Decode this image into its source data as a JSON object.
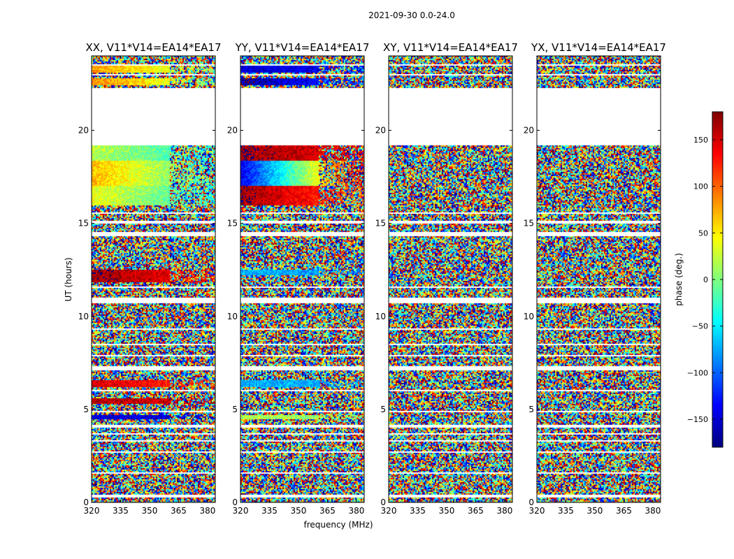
{
  "figure": {
    "suptitle": "2021-09-30 0.0-24.0",
    "xlabel": "frequency (MHz)",
    "ylabel": "UT (hours)"
  },
  "colorbar": {
    "label": "phase (deg.)",
    "range": [
      -180,
      180
    ],
    "ticks": [
      -150,
      -100,
      -50,
      0,
      50,
      100,
      150
    ],
    "tick_labels": [
      "−150",
      "−100",
      "−50",
      "0",
      "50",
      "100",
      "150"
    ],
    "colormap": "jet",
    "colormap_stops": [
      "#00007f",
      "#0000ff",
      "#007fff",
      "#00ffff",
      "#7fff7f",
      "#ffff00",
      "#ff7f00",
      "#ff0000",
      "#7f0000"
    ]
  },
  "chart_data": [
    {
      "type": "heatmap",
      "title": "XX, V11*V14=EA14*EA17",
      "x_ticks": [
        320,
        335,
        350,
        365,
        380
      ],
      "y_ticks": [
        0,
        5,
        10,
        15,
        20
      ],
      "xlim": [
        320,
        384
      ],
      "ylim": [
        0,
        24
      ],
      "coherent_bands": [
        {
          "t0": 4.5,
          "t1": 4.7,
          "phase_low": -150,
          "phase_high": -150
        },
        {
          "t0": 5.3,
          "t1": 5.6,
          "phase_low": 160,
          "phase_high": 150
        },
        {
          "t0": 6.2,
          "t1": 6.6,
          "phase_low": 150,
          "phase_high": 110
        },
        {
          "t0": 11.8,
          "t1": 12.5,
          "phase_low": 170,
          "phase_high": 130
        },
        {
          "t0": 16.0,
          "t1": 17.0,
          "phase_low": 40,
          "phase_high": -40
        },
        {
          "t0": 17.0,
          "t1": 18.4,
          "phase_low": 70,
          "phase_high": -30
        },
        {
          "t0": 18.4,
          "t1": 19.2,
          "phase_low": 20,
          "phase_high": -40
        },
        {
          "t0": 22.4,
          "t1": 22.8,
          "phase_low": 90,
          "phase_high": 0
        },
        {
          "t0": 23.1,
          "t1": 23.5,
          "phase_low": 80,
          "phase_high": 10
        }
      ]
    },
    {
      "type": "heatmap",
      "title": "YY, V11*V14=EA14*EA17",
      "x_ticks": [
        320,
        335,
        350,
        365,
        380
      ],
      "y_ticks": [
        0,
        5,
        10,
        15,
        20
      ],
      "xlim": [
        320,
        384
      ],
      "ylim": [
        0,
        24
      ],
      "coherent_bands": [
        {
          "t0": 4.5,
          "t1": 4.7,
          "phase_low": 20,
          "phase_high": 0
        },
        {
          "t0": 6.2,
          "t1": 6.6,
          "phase_low": -70,
          "phase_high": -80
        },
        {
          "t0": 12.2,
          "t1": 12.5,
          "phase_low": -70,
          "phase_high": -90
        },
        {
          "t0": 16.0,
          "t1": 17.0,
          "phase_low": 170,
          "phase_high": 100
        },
        {
          "t0": 17.0,
          "t1": 18.4,
          "phase_low": -140,
          "phase_high": 150
        },
        {
          "t0": 18.4,
          "t1": 19.2,
          "phase_low": 170,
          "phase_high": 140
        },
        {
          "t0": 22.4,
          "t1": 22.8,
          "phase_low": -170,
          "phase_high": -110
        },
        {
          "t0": 23.1,
          "t1": 23.5,
          "phase_low": -150,
          "phase_high": -140
        }
      ]
    },
    {
      "type": "heatmap",
      "title": "XY, V11*V14=EA14*EA17",
      "x_ticks": [
        320,
        335,
        350,
        365,
        380
      ],
      "y_ticks": [
        0,
        5,
        10,
        15,
        20
      ],
      "xlim": [
        320,
        384
      ],
      "ylim": [
        0,
        24
      ],
      "coherent_bands": []
    },
    {
      "type": "heatmap",
      "title": "YX, V11*V14=EA14*EA17",
      "x_ticks": [
        320,
        335,
        350,
        365,
        380
      ],
      "y_ticks": [
        0,
        5,
        10,
        15,
        20
      ],
      "xlim": [
        320,
        384
      ],
      "ylim": [
        0,
        24
      ],
      "coherent_bands": []
    }
  ],
  "data_gaps_hours": [
    [
      0.3,
      0.42
    ],
    [
      1.55,
      1.65
    ],
    [
      2.65,
      2.75
    ],
    [
      3.25,
      3.35
    ],
    [
      3.65,
      3.75
    ],
    [
      4.05,
      4.15
    ],
    [
      4.85,
      4.95
    ],
    [
      5.95,
      6.02
    ],
    [
      7.1,
      7.35
    ],
    [
      7.85,
      7.95
    ],
    [
      8.45,
      8.55
    ],
    [
      9.25,
      9.35
    ],
    [
      10.7,
      11.0
    ],
    [
      11.55,
      11.62
    ],
    [
      13.15,
      13.22
    ],
    [
      14.3,
      14.55
    ],
    [
      15.0,
      15.1
    ],
    [
      15.5,
      15.6
    ],
    [
      19.2,
      22.3
    ],
    [
      22.95,
      23.05
    ],
    [
      23.5,
      23.55
    ]
  ]
}
